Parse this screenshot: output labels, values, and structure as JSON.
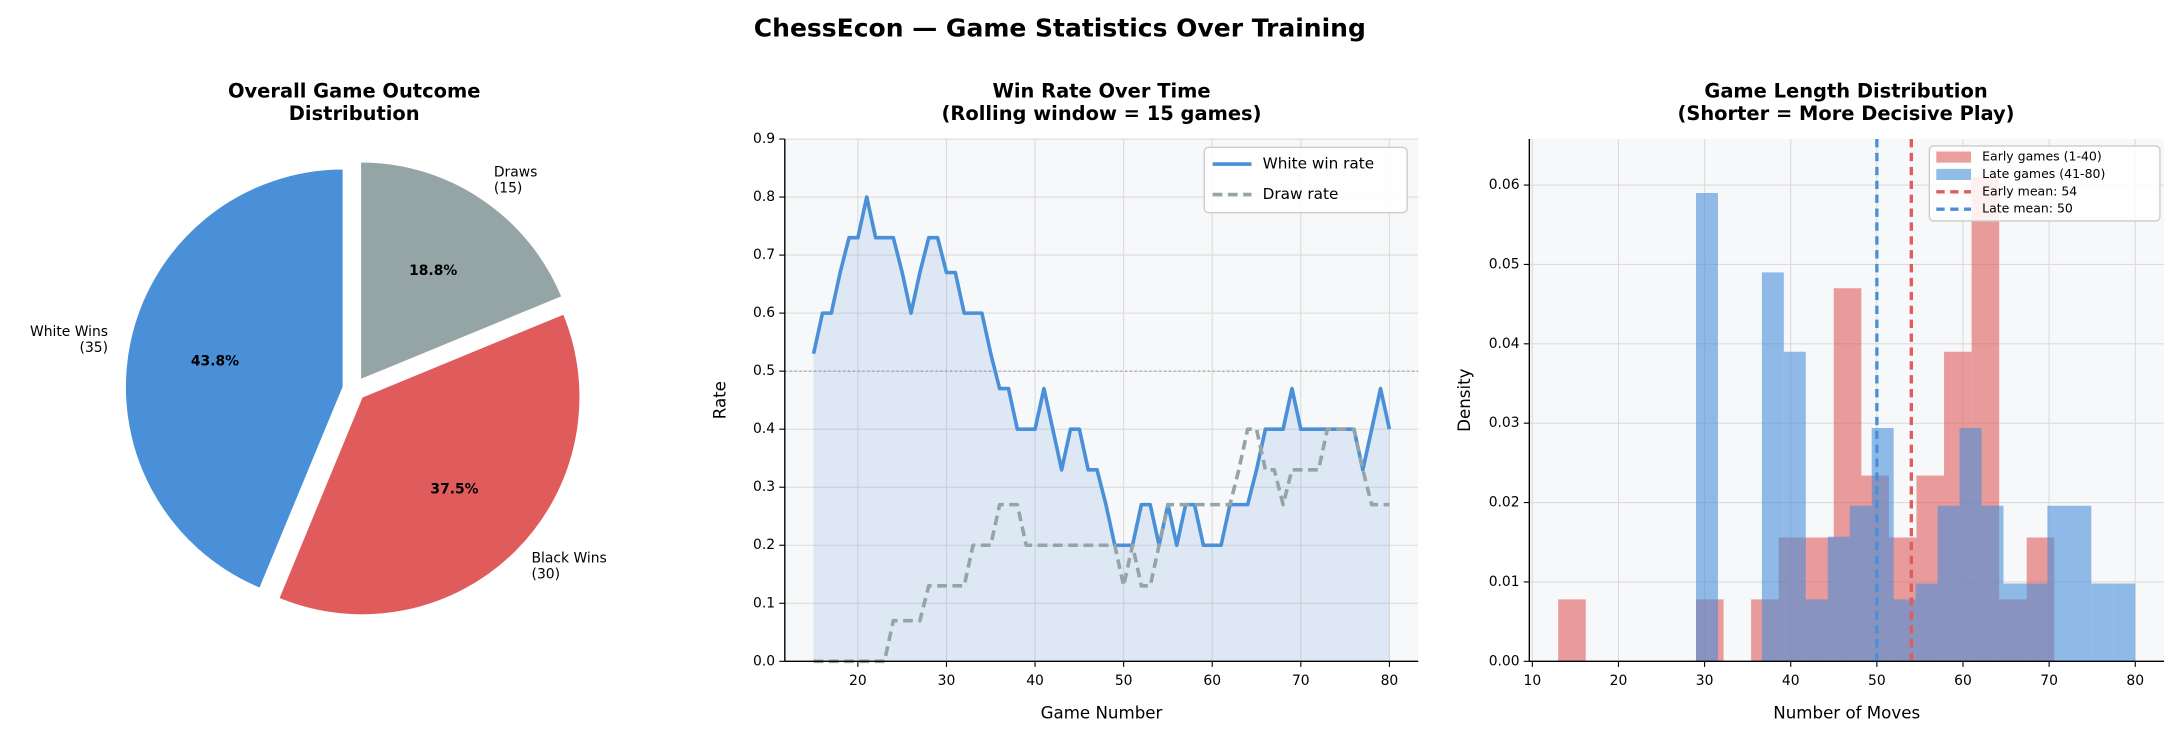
{
  "title": "ChessEcon — Game Statistics Over Training",
  "chart_data": [
    {
      "type": "pie",
      "title": "Overall Game Outcome\nDistribution",
      "categories": [
        "White Wins\n(35)",
        "Black Wins\n(30)",
        "Draws\n(15)"
      ],
      "values": [
        43.8,
        37.5,
        18.8
      ],
      "value_labels": [
        "43.8%",
        "37.5%",
        "18.8%"
      ],
      "colors": [
        "#4a90d9",
        "#e05c5c",
        "#95a5a6"
      ],
      "start_angle": 90
    },
    {
      "type": "line",
      "title": "Win Rate Over Time\n(Rolling window = 15 games)",
      "xlabel": "Game Number",
      "ylabel": "Rate",
      "x": [
        15,
        16,
        17,
        18,
        19,
        20,
        21,
        22,
        23,
        24,
        25,
        26,
        27,
        28,
        29,
        30,
        31,
        32,
        33,
        34,
        35,
        36,
        37,
        38,
        39,
        40,
        41,
        42,
        43,
        44,
        45,
        46,
        47,
        48,
        49,
        50,
        51,
        52,
        53,
        54,
        55,
        56,
        57,
        58,
        59,
        60,
        61,
        62,
        63,
        64,
        65,
        66,
        67,
        68,
        69,
        70,
        71,
        72,
        73,
        74,
        75,
        76,
        77,
        78,
        79,
        80
      ],
      "series": [
        {
          "name": "White win rate",
          "color": "#4a90d9",
          "dash": false,
          "fill_under": true,
          "values": [
            0.53,
            0.6,
            0.6,
            0.67,
            0.73,
            0.73,
            0.8,
            0.73,
            0.73,
            0.73,
            0.67,
            0.6,
            0.67,
            0.73,
            0.73,
            0.67,
            0.67,
            0.6,
            0.6,
            0.6,
            0.53,
            0.47,
            0.47,
            0.4,
            0.4,
            0.4,
            0.47,
            0.4,
            0.33,
            0.4,
            0.4,
            0.33,
            0.33,
            0.27,
            0.2,
            0.2,
            0.2,
            0.27,
            0.27,
            0.2,
            0.27,
            0.2,
            0.27,
            0.27,
            0.2,
            0.2,
            0.2,
            0.27,
            0.27,
            0.27,
            0.33,
            0.4,
            0.4,
            0.4,
            0.47,
            0.4,
            0.4,
            0.4,
            0.4,
            0.4,
            0.4,
            0.4,
            0.33,
            0.4,
            0.47,
            0.4
          ]
        },
        {
          "name": "Draw rate",
          "color": "#95a5a6",
          "dash": true,
          "fill_under": false,
          "values": [
            0,
            0,
            0,
            0,
            0,
            0,
            0,
            0,
            0,
            0.07,
            0.07,
            0.07,
            0.07,
            0.13,
            0.13,
            0.13,
            0.13,
            0.13,
            0.2,
            0.2,
            0.2,
            0.27,
            0.27,
            0.27,
            0.2,
            0.2,
            0.2,
            0.2,
            0.2,
            0.2,
            0.2,
            0.2,
            0.2,
            0.2,
            0.2,
            0.13,
            0.2,
            0.13,
            0.13,
            0.2,
            0.27,
            0.27,
            0.27,
            0.27,
            0.27,
            0.27,
            0.27,
            0.27,
            0.33,
            0.4,
            0.4,
            0.33,
            0.33,
            0.27,
            0.33,
            0.33,
            0.33,
            0.33,
            0.4,
            0.4,
            0.4,
            0.4,
            0.33,
            0.27,
            0.27,
            0.27
          ]
        }
      ],
      "reference_line": 0.5,
      "xlim": [
        11.75,
        83.25
      ],
      "xticks": [
        20,
        30,
        40,
        50,
        60,
        70,
        80
      ],
      "ylim": [
        0,
        0.9
      ],
      "yticks": [
        {
          "value": 0,
          "label": "0.0"
        },
        0.1,
        0.2,
        0.3,
        0.4,
        0.5,
        0.6,
        0.7,
        0.8,
        0.9
      ],
      "grid": true,
      "legend": "upper-right"
    },
    {
      "type": "histogram",
      "title": "Game Length Distribution\n(Shorter = More Decisive Play)",
      "xlabel": "Number of Moves",
      "ylabel": "Density",
      "series": [
        {
          "name": "Early games (1-40)",
          "color": "#e05c5c",
          "bins": [
            13,
            16.2,
            19.4,
            22.6,
            25.8,
            29,
            32.2,
            35.4,
            38.6,
            41.8,
            45,
            48.2,
            51.4,
            54.6,
            57.8,
            61,
            64.2,
            67.4,
            70.6
          ],
          "values": [
            0.0078,
            0,
            0,
            0,
            0,
            0.0078,
            0,
            0.0078,
            0.0156,
            0.0156,
            0.047,
            0.0234,
            0.0156,
            0.0234,
            0.039,
            0.061,
            0.0078,
            0.0156
          ]
        },
        {
          "name": "Late games (41-80)",
          "color": "#4a90d9",
          "bins": [
            29,
            31.55,
            34.1,
            36.65,
            39.2,
            41.75,
            44.3,
            46.85,
            49.4,
            51.95,
            54.5,
            57.05,
            59.6,
            62.15,
            64.7,
            67.25,
            69.8,
            72.35,
            74.9,
            77.45,
            80
          ],
          "values": [
            0.059,
            0,
            0,
            0.049,
            0.039,
            0.0078,
            0.0157,
            0.0196,
            0.0294,
            0.0078,
            0.0098,
            0.0196,
            0.0294,
            0.0196,
            0.0098,
            0.0098,
            0.0196,
            0.0196,
            0.0098,
            0.0098
          ]
        }
      ],
      "vlines": [
        {
          "name": "Early mean: 54",
          "value": 54,
          "color": "#e05c5c"
        },
        {
          "name": "Late mean: 50",
          "value": 50,
          "color": "#4a90d9"
        }
      ],
      "xlim": [
        9.65,
        83.35
      ],
      "xticks": [
        10,
        20,
        30,
        40,
        50,
        60,
        70,
        80
      ],
      "ylim": [
        0,
        0.0658
      ],
      "yticks": [
        {
          "value": 0,
          "label": "0.00"
        },
        {
          "value": 0.01,
          "label": "0.01"
        },
        {
          "value": 0.02,
          "label": "0.02"
        },
        {
          "value": 0.03,
          "label": "0.03"
        },
        {
          "value": 0.04,
          "label": "0.04"
        },
        {
          "value": 0.05,
          "label": "0.05"
        },
        {
          "value": 0.06,
          "label": "0.06"
        }
      ],
      "grid": true,
      "legend": "upper-right"
    }
  ]
}
